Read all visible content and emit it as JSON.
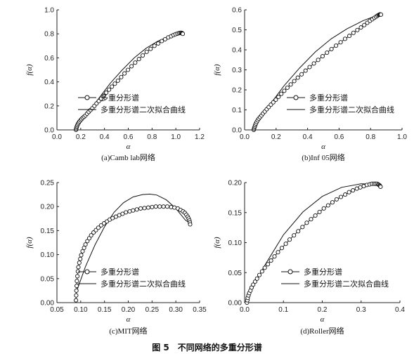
{
  "figure_caption": "图 5　不同网络的多重分形谱",
  "legend": {
    "markers_label": "多重分形谱",
    "fit_label": "多重分形谱二次拟合曲线"
  },
  "chart_data": [
    {
      "id": "a",
      "type": "line",
      "caption": "(a)Camb lab网络",
      "xlabel": "α",
      "ylabel": "f(α)",
      "xlim": [
        0,
        1.2
      ],
      "ylim": [
        0,
        1.0
      ],
      "xticks": [
        "0.0",
        "0.2",
        "0.4",
        "0.6",
        "0.8",
        "1.0",
        "1.2"
      ],
      "yticks": [
        "0.0",
        "0.2",
        "0.4",
        "0.6",
        "0.8",
        "1.0"
      ],
      "legend_position": "lower-right",
      "series": [
        {
          "name": "多重分形谱",
          "x": [
            0.16,
            0.162,
            0.165,
            0.168,
            0.172,
            0.177,
            0.183,
            0.19,
            0.198,
            0.207,
            0.217,
            0.228,
            0.24,
            0.253,
            0.267,
            0.282,
            0.298,
            0.315,
            0.333,
            0.352,
            0.372,
            0.393,
            0.415,
            0.438,
            0.462,
            0.487,
            0.513,
            0.54,
            0.568,
            0.597,
            0.627,
            0.658,
            0.69,
            0.722,
            0.755,
            0.788,
            0.82,
            0.852,
            0.882,
            0.91,
            0.936,
            0.96,
            0.98,
            0.998,
            1.013,
            1.026,
            1.037,
            1.046,
            1.052,
            1.056,
            1.058
          ],
          "y": [
            0.0,
            0.01,
            0.02,
            0.03,
            0.04,
            0.05,
            0.06,
            0.07,
            0.08,
            0.09,
            0.1,
            0.11,
            0.12,
            0.135,
            0.15,
            0.165,
            0.18,
            0.2,
            0.22,
            0.24,
            0.26,
            0.285,
            0.31,
            0.335,
            0.36,
            0.385,
            0.41,
            0.44,
            0.47,
            0.5,
            0.53,
            0.56,
            0.59,
            0.62,
            0.65,
            0.675,
            0.7,
            0.72,
            0.74,
            0.755,
            0.77,
            0.78,
            0.79,
            0.797,
            0.802,
            0.806,
            0.808,
            0.808,
            0.806,
            0.803,
            0.8
          ]
        },
        {
          "name": "多重分形谱二次拟合曲线",
          "x": [
            0.16,
            0.25,
            0.35,
            0.45,
            0.55,
            0.65,
            0.75,
            0.85,
            0.95,
            1.0,
            1.05
          ],
          "y": [
            0.01,
            0.13,
            0.26,
            0.39,
            0.5,
            0.6,
            0.68,
            0.74,
            0.78,
            0.795,
            0.805
          ]
        }
      ]
    },
    {
      "id": "b",
      "type": "line",
      "caption": "(b)Inf 05网络",
      "xlabel": "α",
      "ylabel": "f(α)",
      "xlim": [
        0,
        1.0
      ],
      "ylim": [
        0,
        0.6
      ],
      "xticks": [
        "0.0",
        "0.2",
        "0.4",
        "0.6",
        "0.8",
        "1.0"
      ],
      "yticks": [
        "0.0",
        "0.1",
        "0.2",
        "0.3",
        "0.4",
        "0.5",
        "0.6"
      ],
      "legend_position": "lower-right",
      "series": [
        {
          "name": "多重分形谱",
          "x": [
            0.058,
            0.06,
            0.062,
            0.065,
            0.068,
            0.072,
            0.077,
            0.083,
            0.09,
            0.098,
            0.107,
            0.117,
            0.128,
            0.14,
            0.153,
            0.167,
            0.182,
            0.198,
            0.215,
            0.233,
            0.252,
            0.272,
            0.293,
            0.315,
            0.338,
            0.362,
            0.387,
            0.413,
            0.44,
            0.467,
            0.495,
            0.523,
            0.552,
            0.581,
            0.61,
            0.638,
            0.665,
            0.691,
            0.716,
            0.739,
            0.76,
            0.779,
            0.796,
            0.811,
            0.824,
            0.835,
            0.844,
            0.851,
            0.856,
            0.86,
            0.863,
            0.866
          ],
          "y": [
            0.0,
            0.006,
            0.012,
            0.018,
            0.025,
            0.032,
            0.04,
            0.048,
            0.056,
            0.064,
            0.072,
            0.082,
            0.092,
            0.103,
            0.114,
            0.126,
            0.138,
            0.151,
            0.165,
            0.18,
            0.195,
            0.211,
            0.227,
            0.244,
            0.261,
            0.278,
            0.296,
            0.314,
            0.332,
            0.35,
            0.368,
            0.386,
            0.404,
            0.421,
            0.438,
            0.455,
            0.47,
            0.485,
            0.499,
            0.512,
            0.524,
            0.535,
            0.545,
            0.553,
            0.56,
            0.566,
            0.571,
            0.574,
            0.576,
            0.577,
            0.577,
            0.576
          ]
        },
        {
          "name": "多重分形谱二次拟合曲线",
          "x": [
            0.058,
            0.15,
            0.25,
            0.35,
            0.45,
            0.55,
            0.65,
            0.75,
            0.85,
            0.866
          ],
          "y": [
            0.01,
            0.115,
            0.22,
            0.31,
            0.39,
            0.455,
            0.505,
            0.545,
            0.575,
            0.578
          ]
        }
      ]
    },
    {
      "id": "c",
      "type": "line",
      "caption": "(c)MIT网络",
      "xlabel": "α",
      "ylabel": "f(α)",
      "xlim": [
        0.05,
        0.35
      ],
      "ylim": [
        0,
        0.25
      ],
      "xticks": [
        "0.05",
        "0.10",
        "0.15",
        "0.20",
        "0.25",
        "0.30",
        "0.35"
      ],
      "yticks": [
        "0.00",
        "0.05",
        "0.10",
        "0.15",
        "0.20",
        "0.25"
      ],
      "legend_position": "lower-right",
      "series": [
        {
          "name": "多重分形谱",
          "x": [
            0.09,
            0.0905,
            0.091,
            0.0915,
            0.092,
            0.093,
            0.094,
            0.095,
            0.097,
            0.099,
            0.101,
            0.104,
            0.107,
            0.11,
            0.114,
            0.118,
            0.122,
            0.127,
            0.132,
            0.137,
            0.143,
            0.149,
            0.155,
            0.161,
            0.167,
            0.174,
            0.181,
            0.188,
            0.195,
            0.203,
            0.21,
            0.218,
            0.226,
            0.234,
            0.242,
            0.25,
            0.258,
            0.266,
            0.274,
            0.282,
            0.29,
            0.297,
            0.304,
            0.31,
            0.315,
            0.319,
            0.322,
            0.325,
            0.327,
            0.3285,
            0.3295,
            0.33
          ],
          "y": [
            0.005,
            0.015,
            0.025,
            0.035,
            0.045,
            0.055,
            0.065,
            0.074,
            0.083,
            0.091,
            0.099,
            0.107,
            0.114,
            0.121,
            0.128,
            0.134,
            0.14,
            0.146,
            0.151,
            0.156,
            0.161,
            0.165,
            0.169,
            0.173,
            0.176,
            0.179,
            0.182,
            0.185,
            0.188,
            0.19,
            0.192,
            0.194,
            0.196,
            0.197,
            0.198,
            0.199,
            0.2,
            0.2,
            0.2,
            0.2,
            0.199,
            0.198,
            0.196,
            0.193,
            0.19,
            0.187,
            0.183,
            0.179,
            0.175,
            0.171,
            0.167,
            0.163
          ]
        },
        {
          "name": "多重分形谱二次拟合曲线",
          "x": [
            0.09,
            0.11,
            0.13,
            0.15,
            0.17,
            0.19,
            0.21,
            0.23,
            0.245,
            0.26,
            0.28,
            0.3,
            0.32,
            0.33
          ],
          "y": [
            0.02,
            0.075,
            0.12,
            0.158,
            0.188,
            0.208,
            0.22,
            0.225,
            0.226,
            0.224,
            0.214,
            0.196,
            0.172,
            0.165
          ]
        }
      ]
    },
    {
      "id": "d",
      "type": "line",
      "caption": "(d)Roller网络",
      "xlabel": "α",
      "ylabel": "f(α)",
      "xlim": [
        0,
        0.4
      ],
      "ylim": [
        0,
        0.2
      ],
      "xticks": [
        "0.0",
        "0.1",
        "0.2",
        "0.3",
        "0.4"
      ],
      "yticks": [
        "0.00",
        "0.05",
        "0.10",
        "0.15",
        "0.20"
      ],
      "legend_position": "lower-right",
      "series": [
        {
          "name": "多重分形谱",
          "x": [
            0.006,
            0.007,
            0.008,
            0.01,
            0.012,
            0.015,
            0.018,
            0.022,
            0.027,
            0.032,
            0.038,
            0.045,
            0.052,
            0.06,
            0.068,
            0.077,
            0.086,
            0.096,
            0.106,
            0.116,
            0.127,
            0.138,
            0.149,
            0.16,
            0.171,
            0.182,
            0.193,
            0.204,
            0.215,
            0.226,
            0.237,
            0.248,
            0.259,
            0.269,
            0.279,
            0.289,
            0.298,
            0.307,
            0.315,
            0.322,
            0.328,
            0.333,
            0.337,
            0.341,
            0.344,
            0.346,
            0.348,
            0.349,
            0.35
          ],
          "y": [
            0.0,
            0.004,
            0.008,
            0.012,
            0.016,
            0.02,
            0.025,
            0.03,
            0.035,
            0.04,
            0.046,
            0.052,
            0.058,
            0.064,
            0.07,
            0.077,
            0.084,
            0.091,
            0.098,
            0.105,
            0.112,
            0.119,
            0.126,
            0.133,
            0.139,
            0.145,
            0.151,
            0.157,
            0.162,
            0.167,
            0.172,
            0.176,
            0.18,
            0.184,
            0.187,
            0.19,
            0.192,
            0.194,
            0.196,
            0.197,
            0.198,
            0.198,
            0.198,
            0.198,
            0.197,
            0.196,
            0.195,
            0.194,
            0.193
          ]
        },
        {
          "name": "多重分形谱二次拟合曲线",
          "x": [
            0.006,
            0.05,
            0.1,
            0.15,
            0.2,
            0.25,
            0.3,
            0.35
          ],
          "y": [
            0.006,
            0.06,
            0.113,
            0.151,
            0.177,
            0.192,
            0.198,
            0.197
          ]
        }
      ]
    }
  ]
}
